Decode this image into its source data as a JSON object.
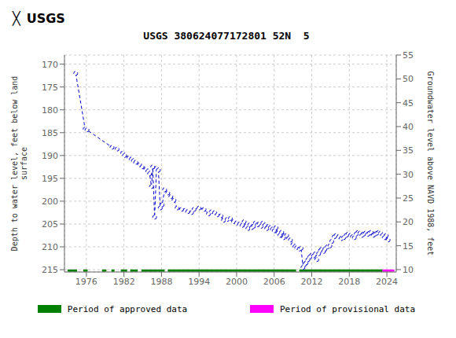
{
  "chart_data": {
    "type": "line",
    "title": "USGS 380624077172801 52N  5",
    "header": "USGS",
    "logo": "╳",
    "ylabel": "Depth to water level, feet below land\nsurface",
    "y2label": "Groundwater level above NAVD 1988, feet",
    "x": [
      1974.3,
      1975.8,
      1976.1,
      1980.1,
      1980.9,
      1981.8,
      1982.1,
      1982.8,
      1983.2,
      1983.5,
      1983.9,
      1984.5,
      1984.9,
      1985.5,
      1985.8,
      1986.1,
      1986.4,
      1986.6,
      1986.9,
      1987.2,
      1987.5,
      1987.8,
      1988.1,
      1988.5,
      1989.0,
      1989.5,
      1990.0,
      1990.5,
      1991.2,
      1991.8,
      1992.2,
      1992.8,
      1993.2,
      1994.0,
      1994.8,
      1995.5,
      1996.0,
      1996.5,
      1996.9,
      1997.5,
      1997.9,
      1998.5,
      1999.0,
      1999.5,
      2000.0,
      2000.5,
      2000.9,
      2001.2,
      2001.5,
      2001.8,
      2002.1,
      2002.4,
      2002.7,
      2003.0,
      2003.3,
      2003.6,
      2003.9,
      2004.2,
      2004.5,
      2004.8,
      2005.1,
      2005.4,
      2005.7,
      2006.0,
      2006.3,
      2006.6,
      2006.9,
      2007.2,
      2007.5,
      2007.7,
      2008.0,
      2008.3,
      2008.6,
      2009.0,
      2009.3,
      2009.6,
      2010.0,
      2010.3,
      2010.6,
      2010.9,
      2011.1,
      2011.4,
      2011.7,
      2012.0,
      2012.3,
      2012.6,
      2012.8,
      2013.1,
      2013.4,
      2013.6,
      2013.9,
      2014.1,
      2014.5,
      2014.9,
      2015.2,
      2015.6,
      2015.9,
      2016.3,
      2016.7,
      2017.1,
      2017.5,
      2017.8,
      2018.2,
      2018.5,
      2018.8,
      2019.1,
      2019.4,
      2019.7,
      2020.0,
      2020.3,
      2020.6,
      2020.9,
      2021.2,
      2021.5,
      2021.8,
      2022.1,
      2022.4,
      2022.7,
      2023.0,
      2023.3,
      2023.6,
      2023.9,
      2024.2
    ],
    "series": [
      {
        "color": "#0000cc",
        "marker": "o",
        "line_style": "dashed",
        "values": [
          172.0,
          184.2,
          184.4,
          188.2,
          188.6,
          189.5,
          190.0,
          190.5,
          190.8,
          191.2,
          191.5,
          192.0,
          192.5,
          193.0,
          193.5,
          194.0,
          196.8,
          192.5,
          203.5,
          192.8,
          193.2,
          201.5,
          200.8,
          197.5,
          198.2,
          199.0,
          199.8,
          201.5,
          201.8,
          202.0,
          202.3,
          202.5,
          201.8,
          201.5,
          201.8,
          202.8,
          202.3,
          202.5,
          203.0,
          203.2,
          204.2,
          204.0,
          203.8,
          204.5,
          204.8,
          205.0,
          205.3,
          204.5,
          205.5,
          206.0,
          205.2,
          205.8,
          205.5,
          204.8,
          205.2,
          205.0,
          205.5,
          204.8,
          205.3,
          206.0,
          205.5,
          205.8,
          206.2,
          206.5,
          205.8,
          207.0,
          207.5,
          206.8,
          208.0,
          207.5,
          207.5,
          208.2,
          208.5,
          209.5,
          210.0,
          210.2,
          210.5,
          210.3,
          214.5,
          213.8,
          213.5,
          212.8,
          212.2,
          211.8,
          212.0,
          211.5,
          212.8,
          211.5,
          210.8,
          210.5,
          211.0,
          210.5,
          210.0,
          209.8,
          208.8,
          207.8,
          207.5,
          207.8,
          208.2,
          208.0,
          207.5,
          207.2,
          207.5,
          207.8,
          208.0,
          207.2,
          206.8,
          207.0,
          207.5,
          207.2,
          207.0,
          207.3,
          207.0,
          206.8,
          207.5,
          207.2,
          207.0,
          206.8,
          207.0,
          207.5,
          208.0,
          207.5,
          208.5
        ]
      }
    ],
    "xlim": [
      1972.5,
      2025.5
    ],
    "xticks": [
      1976,
      1982,
      1988,
      1994,
      2000,
      2006,
      2012,
      2018,
      2024
    ],
    "ylim": [
      215.5,
      168.0
    ],
    "yticks": [
      170,
      175,
      180,
      185,
      190,
      195,
      200,
      205,
      210,
      215
    ],
    "y2lim": [
      9.5,
      55.0
    ],
    "y2ticks": [
      10,
      15,
      20,
      25,
      30,
      35,
      40,
      45,
      50,
      55
    ],
    "grid": true,
    "periods": [
      {
        "name": "Period of approved data",
        "color": "#008000",
        "ranges": [
          [
            1973.0,
            1974.5
          ],
          [
            1975.5,
            1976.2
          ],
          [
            1978.5,
            1979.2
          ],
          [
            1980.0,
            1980.5
          ],
          [
            1981.5,
            1982.5
          ],
          [
            1983.0,
            1984.2
          ],
          [
            1984.8,
            1988.5
          ],
          [
            1989.0,
            2009.5
          ],
          [
            2010.0,
            2023.3
          ]
        ]
      },
      {
        "name": "Period of provisional data",
        "color": "#ff00ff",
        "ranges": [
          [
            2023.3,
            2025.2
          ]
        ]
      }
    ],
    "period_bar_y": 215.2,
    "period_bar_height": 0.5
  }
}
